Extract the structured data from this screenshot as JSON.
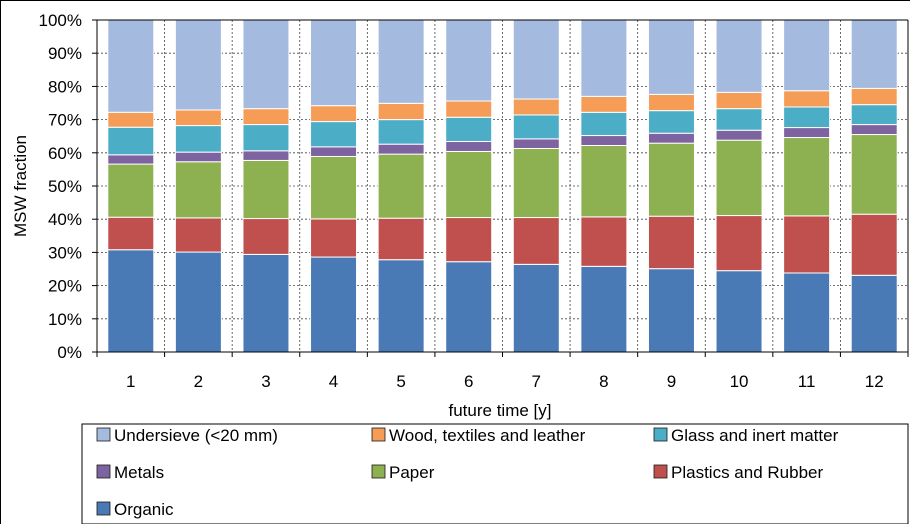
{
  "chart_data": {
    "type": "bar",
    "stacked": true,
    "title": "",
    "xlabel": "future time [y]",
    "ylabel": "MSW fraction",
    "ylim": [
      0,
      100
    ],
    "yticks": [
      "0%",
      "10%",
      "20%",
      "30%",
      "40%",
      "50%",
      "60%",
      "70%",
      "80%",
      "90%",
      "100%"
    ],
    "grid": true,
    "legend_position": "bottom",
    "categories": [
      "1",
      "2",
      "3",
      "4",
      "5",
      "6",
      "7",
      "8",
      "9",
      "10",
      "11",
      "12"
    ],
    "series": [
      {
        "name": "Organic",
        "color": "#4a7ab5",
        "values": [
          30.8,
          30.1,
          29.4,
          28.6,
          27.8,
          27.2,
          26.4,
          25.8,
          25.1,
          24.5,
          23.8,
          23.1
        ]
      },
      {
        "name": "Plastics and Rubber",
        "color": "#c0504d",
        "values": [
          9.8,
          10.3,
          10.8,
          11.5,
          12.5,
          13.3,
          14.1,
          14.9,
          15.8,
          16.6,
          17.2,
          18.4
        ]
      },
      {
        "name": "Paper",
        "color": "#8db050",
        "values": [
          16.0,
          16.9,
          17.5,
          18.8,
          19.3,
          19.9,
          20.8,
          21.5,
          22.0,
          22.7,
          23.6,
          24.0
        ]
      },
      {
        "name": "Metals",
        "color": "#7e63a1",
        "values": [
          2.8,
          2.9,
          2.9,
          2.9,
          3.0,
          3.0,
          2.9,
          3.0,
          3.0,
          3.0,
          3.0,
          3.0
        ]
      },
      {
        "name": "Glass and inert matter",
        "color": "#4badc6",
        "values": [
          8.3,
          8.0,
          7.9,
          7.6,
          7.4,
          7.3,
          7.2,
          7.0,
          6.8,
          6.5,
          6.2,
          6.0
        ]
      },
      {
        "name": "Wood, textiles and leather",
        "color": "#f59d56",
        "values": [
          4.5,
          4.7,
          4.8,
          4.8,
          4.9,
          4.9,
          4.8,
          4.8,
          4.9,
          4.9,
          4.9,
          4.9
        ]
      },
      {
        "name": "Undersieve (<20 mm)",
        "color": "#a5badf",
        "values": [
          27.8,
          27.1,
          26.7,
          25.8,
          25.1,
          24.4,
          23.8,
          23.0,
          22.4,
          21.8,
          21.3,
          20.6
        ]
      }
    ],
    "legend_order": [
      "Undersieve (<20 mm)",
      "Wood, textiles and leather",
      "Glass and inert matter",
      "Metals",
      "Paper",
      "Plastics and Rubber",
      "Organic"
    ]
  }
}
